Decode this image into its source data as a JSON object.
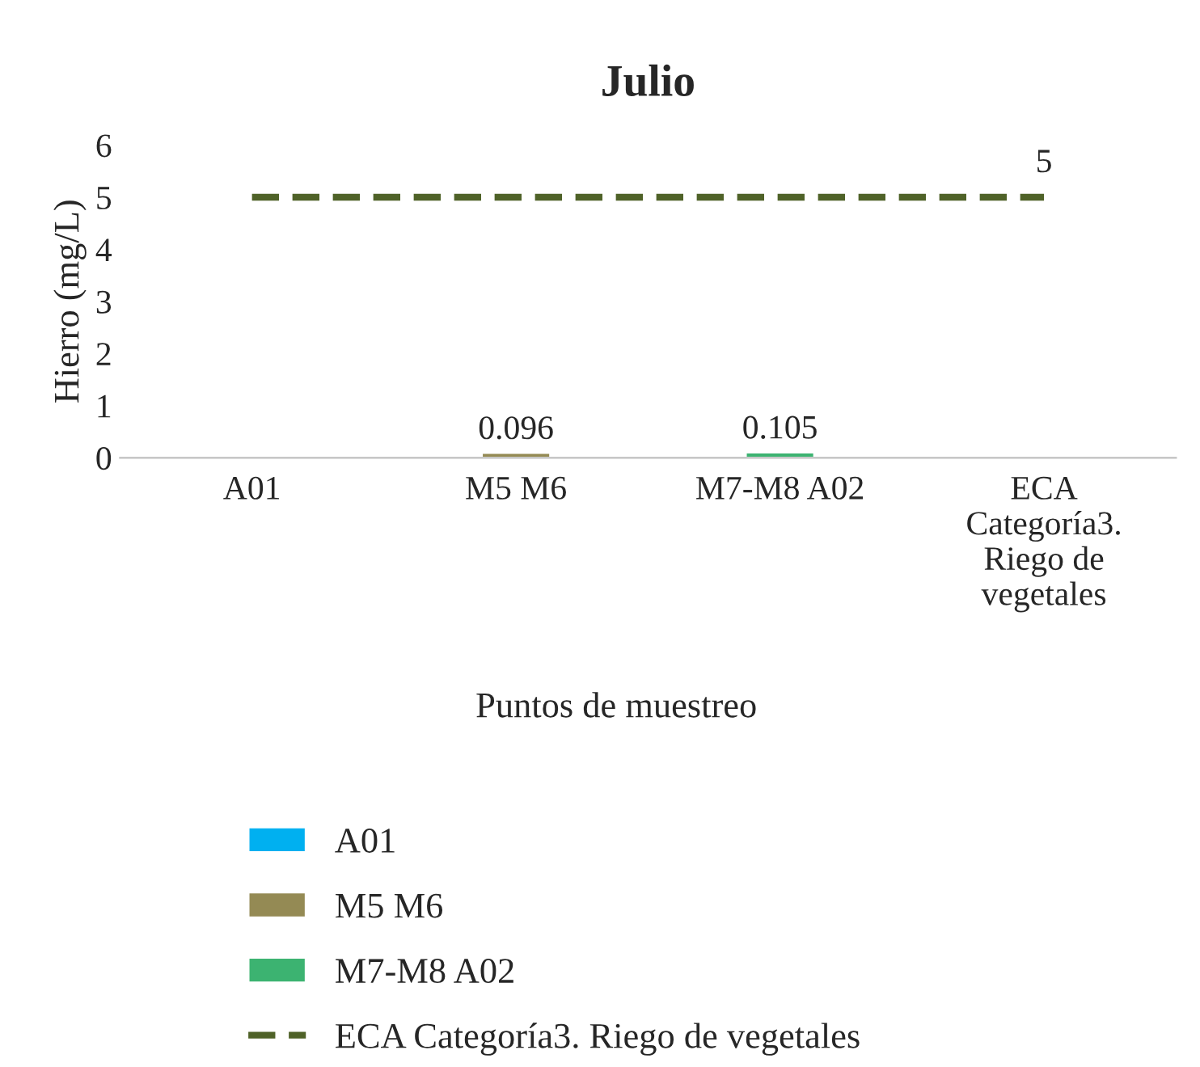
{
  "chart_data": {
    "type": "bar",
    "title": "Julio",
    "xlabel": "Puntos de muestreo",
    "ylabel": "Hierro (mg/L)",
    "categories": [
      "A01",
      "M5 M6",
      "M7-M8 A02",
      "ECA Categoría3. Riego de vegetales"
    ],
    "series": [
      {
        "name": "A01",
        "color": "#00b0f0",
        "values": [
          null,
          null,
          null,
          null
        ]
      },
      {
        "name": "M5 M6",
        "color": "#948a54",
        "values": [
          null,
          0.096,
          null,
          null
        ],
        "value_labels": [
          null,
          "0.096",
          null,
          null
        ]
      },
      {
        "name": "M7-M8 A02",
        "color": "#3cb371",
        "values": [
          null,
          null,
          0.105,
          null
        ],
        "value_labels": [
          null,
          null,
          "0.105",
          null
        ]
      },
      {
        "name": "ECA Categoría3. Riego de vegetales",
        "type": "line",
        "color": "#4f6228",
        "line_style": "dashed",
        "marker": "none",
        "values": [
          5,
          5,
          5,
          5
        ],
        "value_labels": [
          null,
          null,
          null,
          "5"
        ]
      }
    ],
    "ylim": [
      0,
      6
    ],
    "yticks": [
      0,
      1,
      2,
      3,
      4,
      5,
      6
    ],
    "grid": false,
    "legend": "bottom"
  }
}
